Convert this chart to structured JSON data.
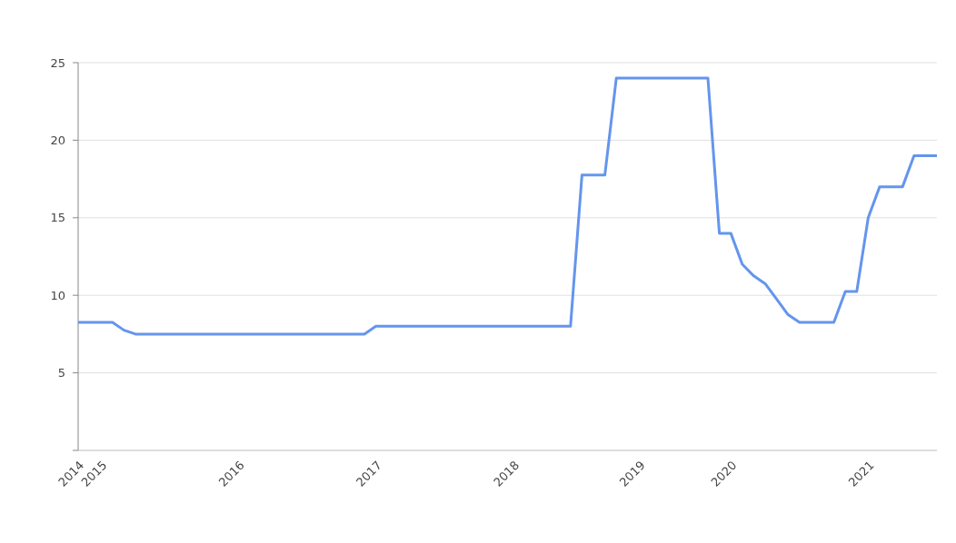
{
  "chart_data": {
    "type": "line",
    "categories": [
      "2014",
      null,
      "2015",
      null,
      null,
      null,
      null,
      null,
      null,
      null,
      null,
      null,
      null,
      null,
      "2016",
      null,
      null,
      null,
      null,
      null,
      null,
      null,
      null,
      null,
      null,
      null,
      "2017",
      null,
      null,
      null,
      null,
      null,
      null,
      null,
      null,
      null,
      null,
      null,
      "2018",
      null,
      null,
      null,
      null,
      null,
      null,
      null,
      null,
      null,
      null,
      "2019",
      null,
      null,
      null,
      null,
      null,
      null,
      null,
      "2020",
      null,
      null,
      null,
      null,
      null,
      null,
      null,
      null,
      null,
      null,
      null,
      "2021",
      null,
      null,
      null,
      null,
      null,
      null
    ],
    "series": [
      {
        "color": "#6495ed",
        "values": [
          8.25,
          8.25,
          8.25,
          8.25,
          7.75,
          7.5,
          7.5,
          7.5,
          7.5,
          7.5,
          7.5,
          7.5,
          7.5,
          7.5,
          7.5,
          7.5,
          7.5,
          7.5,
          7.5,
          7.5,
          7.5,
          7.5,
          7.5,
          7.5,
          7.5,
          7.5,
          8,
          8,
          8,
          8,
          8,
          8,
          8,
          8,
          8,
          8,
          8,
          8,
          8,
          8,
          8,
          8,
          8,
          8,
          17.75,
          17.75,
          17.75,
          24,
          24,
          24,
          24,
          24,
          24,
          24,
          24,
          24,
          14,
          14,
          12,
          11.25,
          10.75,
          9.75,
          8.75,
          8.25,
          8.25,
          8.25,
          8.25,
          10.25,
          10.25,
          15,
          17,
          17,
          17,
          19,
          19,
          19
        ]
      }
    ],
    "ylim": [
      0,
      25
    ],
    "yticks": [
      {
        "value": 0,
        "label": null
      },
      5,
      10,
      15,
      20,
      25
    ],
    "grid": "y",
    "marker": "none",
    "line_style": "solid"
  }
}
